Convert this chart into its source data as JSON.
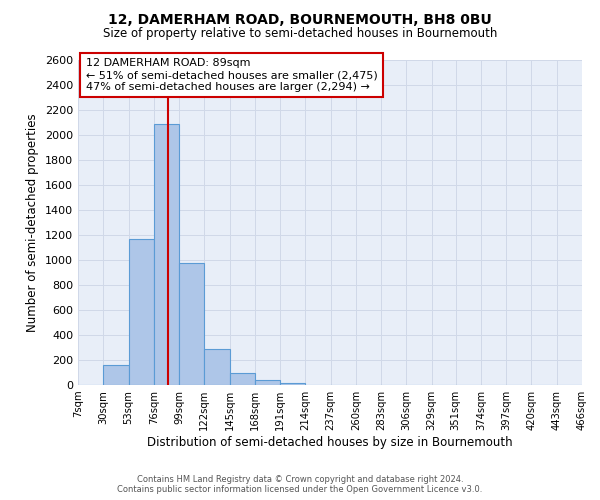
{
  "title": "12, DAMERHAM ROAD, BOURNEMOUTH, BH8 0BU",
  "subtitle": "Size of property relative to semi-detached houses in Bournemouth",
  "xlabel": "Distribution of semi-detached houses by size in Bournemouth",
  "ylabel": "Number of semi-detached properties",
  "footer_line1": "Contains HM Land Registry data © Crown copyright and database right 2024.",
  "footer_line2": "Contains public sector information licensed under the Open Government Licence v3.0.",
  "bar_edges": [
    7,
    30,
    53,
    76,
    99,
    122,
    145,
    168,
    191,
    214,
    237,
    260,
    283,
    306,
    329,
    351,
    374,
    397,
    420,
    443,
    466
  ],
  "bar_heights": [
    0,
    160,
    1170,
    2090,
    980,
    290,
    100,
    40,
    15,
    0,
    0,
    0,
    0,
    0,
    0,
    0,
    0,
    0,
    0,
    0
  ],
  "bar_color": "#aec6e8",
  "bar_edge_color": "#5b9bd5",
  "property_size": 89,
  "property_line_color": "#cc0000",
  "annotation_title": "12 DAMERHAM ROAD: 89sqm",
  "annotation_line1": "← 51% of semi-detached houses are smaller (2,475)",
  "annotation_line2": "47% of semi-detached houses are larger (2,294) →",
  "annotation_box_color": "#cc0000",
  "ylim": [
    0,
    2600
  ],
  "yticks": [
    0,
    200,
    400,
    600,
    800,
    1000,
    1200,
    1400,
    1600,
    1800,
    2000,
    2200,
    2400,
    2600
  ],
  "tick_labels": [
    "7sqm",
    "30sqm",
    "53sqm",
    "76sqm",
    "99sqm",
    "122sqm",
    "145sqm",
    "168sqm",
    "191sqm",
    "214sqm",
    "237sqm",
    "260sqm",
    "283sqm",
    "306sqm",
    "329sqm",
    "351sqm",
    "374sqm",
    "397sqm",
    "420sqm",
    "443sqm",
    "466sqm"
  ],
  "background_color": "#ffffff",
  "grid_color": "#d0d8e8"
}
